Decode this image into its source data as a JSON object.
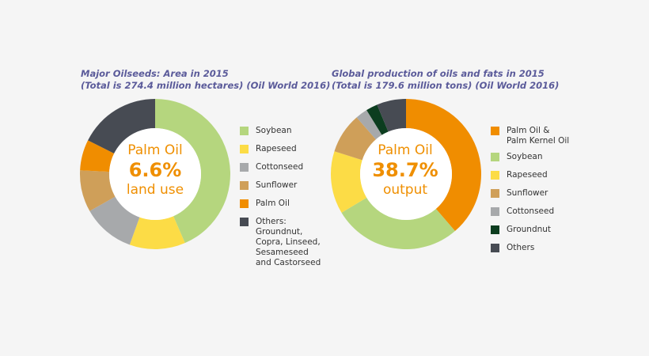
{
  "chart_data": [
    {
      "type": "pie",
      "title_line1": "Major Oilseeds: Area in 2015",
      "title_line2": "(Total is 274.4 million hectares) (Oil World 2016)",
      "center": {
        "top": "Palm Oil",
        "value": "6.6%",
        "bottom": "land use"
      },
      "slices": [
        {
          "name": "Soybean",
          "value": 43.5,
          "color": "#b5d67e"
        },
        {
          "name": "Rapeseed",
          "value": 12.0,
          "color": "#fcdc46"
        },
        {
          "name": "Cottonseed",
          "value": 11.3,
          "color": "#a7a9ab"
        },
        {
          "name": "Sunflower",
          "value": 9.0,
          "color": "#cf9f59"
        },
        {
          "name": "Palm Oil",
          "value": 6.6,
          "color": "#f08d00"
        },
        {
          "name": "Others:\nGroundnut,\nCopra, Linseed,\nSesameseed\nand Castorseed",
          "value": 17.6,
          "color": "#474b53"
        }
      ]
    },
    {
      "type": "pie",
      "title_line1": "Global production of oils and fats in 2015",
      "title_line2": "(Total is 179.6 million tons) (Oil World 2016)",
      "center": {
        "top": "Palm Oil",
        "value": "38.7%",
        "bottom": "output"
      },
      "slices": [
        {
          "name": "Palm Oil &\nPalm Kernel Oil",
          "value": 38.7,
          "color": "#f08d00"
        },
        {
          "name": "Soybean",
          "value": 27.7,
          "color": "#b5d67e"
        },
        {
          "name": "Rapeseed",
          "value": 13.5,
          "color": "#fcdc46"
        },
        {
          "name": "Sunflower",
          "value": 8.7,
          "color": "#cf9f59"
        },
        {
          "name": "Cottonseed",
          "value": 2.6,
          "color": "#a7a9ab"
        },
        {
          "name": "Groundnut",
          "value": 2.5,
          "color": "#0c3d1f"
        },
        {
          "name": "Others",
          "value": 6.3,
          "color": "#474b53"
        }
      ]
    }
  ]
}
